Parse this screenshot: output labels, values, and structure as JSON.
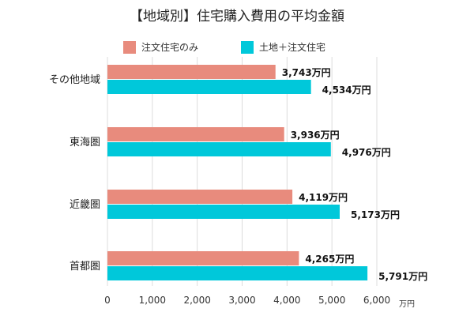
{
  "chart_data": {
    "type": "bar",
    "orientation": "horizontal",
    "title": "【地域別】住宅購入費用の平均金額",
    "categories": [
      "その他地域",
      "東海圏",
      "近畿圏",
      "首都圏"
    ],
    "series": [
      {
        "name": "注文住宅のみ",
        "color": "#E88B7D",
        "values": [
          3743,
          3936,
          4119,
          4265
        ],
        "labels": [
          "3,743万円",
          "3,936万円",
          "4,119万円",
          "4,265万円"
        ]
      },
      {
        "name": "土地＋注文住宅",
        "color": "#00C8DA",
        "values": [
          4534,
          4976,
          5173,
          5791
        ],
        "labels": [
          "4,534万円",
          "4,976万円",
          "5,173万円",
          "5,791万円"
        ]
      }
    ],
    "xlim": [
      0,
      6000
    ],
    "xticks": [
      "0",
      "1,000",
      "2,000",
      "3,000",
      "4,000",
      "5,000",
      "6,000"
    ],
    "xunit": "万円",
    "grid": true,
    "legend": "top"
  }
}
